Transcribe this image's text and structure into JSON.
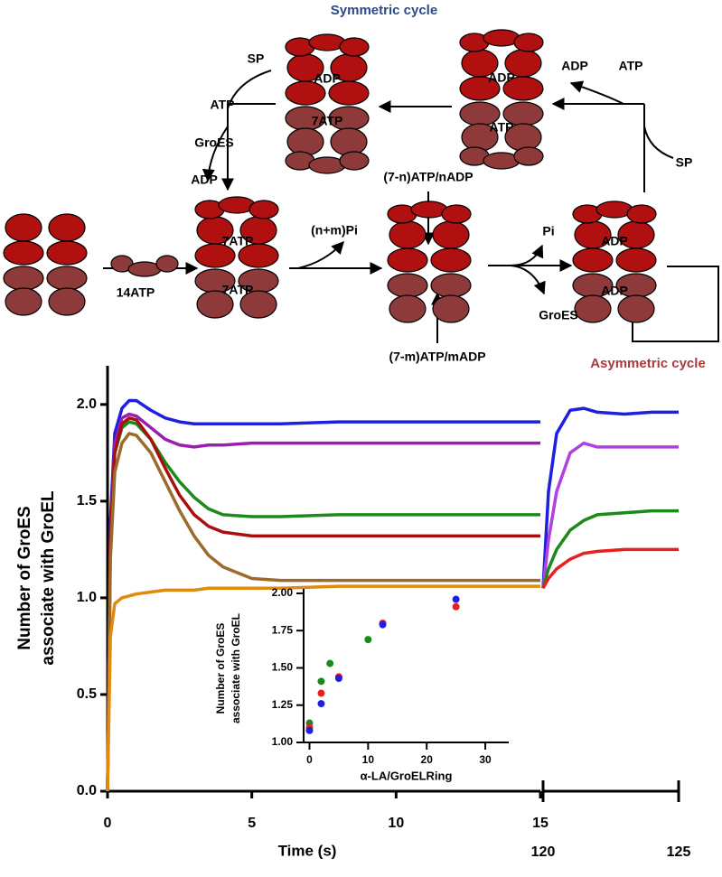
{
  "diagram": {
    "title": "Symmetric cycle",
    "subtitle": "Asymmetric cycle",
    "labels": [
      "SP",
      "ATP",
      "GroES",
      "ADP",
      "ADP",
      "7ATP",
      "ADP",
      "ATP",
      "ADP",
      "ATP",
      "SP",
      "14ATP",
      "7ATP",
      "7ATP",
      "(n+m)Pi",
      "(7-n)ATP/nADP",
      "(7-m)ATP/mADP",
      "Pi",
      "GroES",
      "ADP",
      "ADP"
    ]
  },
  "chart_data": [
    {
      "type": "line",
      "x_label": "Time (s)",
      "y_label": [
        "Number of GroES",
        "associate with GroEL"
      ],
      "x": [
        0,
        0.1,
        0.25,
        0.5,
        0.75,
        1,
        1.5,
        2,
        2.5,
        3,
        3.5,
        4,
        5,
        6,
        8,
        10,
        12,
        15
      ],
      "series": [
        {
          "color": "#1f1fe0",
          "values": [
            0,
            1.4,
            1.85,
            1.98,
            2.02,
            2.02,
            1.97,
            1.93,
            1.91,
            1.9,
            1.9,
            1.9,
            1.9,
            1.9,
            1.91,
            1.91,
            1.91,
            1.91
          ]
        },
        {
          "color": "#9a1fb0",
          "values": [
            0,
            1.35,
            1.8,
            1.93,
            1.95,
            1.94,
            1.88,
            1.82,
            1.79,
            1.78,
            1.79,
            1.79,
            1.8,
            1.8,
            1.8,
            1.8,
            1.8,
            1.8
          ]
        },
        {
          "color": "#1a8a1a",
          "values": [
            0,
            1.3,
            1.75,
            1.88,
            1.91,
            1.9,
            1.82,
            1.7,
            1.6,
            1.52,
            1.46,
            1.43,
            1.42,
            1.42,
            1.43,
            1.43,
            1.43,
            1.43
          ]
        },
        {
          "color": "#a81010",
          "values": [
            0,
            1.3,
            1.75,
            1.9,
            1.93,
            1.92,
            1.82,
            1.67,
            1.53,
            1.43,
            1.37,
            1.34,
            1.32,
            1.32,
            1.32,
            1.32,
            1.32,
            1.32
          ]
        },
        {
          "color": "#9c6a2a",
          "values": [
            0,
            1.2,
            1.65,
            1.8,
            1.85,
            1.84,
            1.75,
            1.6,
            1.45,
            1.32,
            1.22,
            1.16,
            1.1,
            1.09,
            1.09,
            1.09,
            1.09,
            1.09
          ]
        },
        {
          "color": "#e08a10",
          "values": [
            0,
            0.8,
            0.97,
            1.0,
            1.01,
            1.02,
            1.03,
            1.04,
            1.04,
            1.04,
            1.05,
            1.05,
            1.05,
            1.05,
            1.06,
            1.06,
            1.06,
            1.06
          ]
        }
      ],
      "xlim": [
        0,
        15
      ],
      "ylim": [
        0,
        2.2
      ],
      "xticks": [
        0,
        5,
        10,
        15
      ],
      "yticks": [
        {
          "value": 0,
          "label": "0.0"
        },
        0.5,
        {
          "value": 1,
          "label": "1.0"
        },
        1.5,
        {
          "value": 2,
          "label": "2.0"
        }
      ]
    },
    {
      "type": "line",
      "x": [
        120,
        120.2,
        120.5,
        121,
        121.5,
        122,
        123,
        124,
        125
      ],
      "series": [
        {
          "color": "#1f1fe0",
          "values": [
            1.05,
            1.55,
            1.85,
            1.97,
            1.98,
            1.96,
            1.95,
            1.96,
            1.96
          ]
        },
        {
          "color": "#b040e0",
          "values": [
            1.05,
            1.3,
            1.55,
            1.75,
            1.8,
            1.78,
            1.78,
            1.78,
            1.78
          ]
        },
        {
          "color": "#1a8a1a",
          "values": [
            1.05,
            1.15,
            1.25,
            1.35,
            1.4,
            1.43,
            1.44,
            1.45,
            1.45
          ]
        },
        {
          "color": "#e82020",
          "values": [
            1.05,
            1.1,
            1.15,
            1.2,
            1.23,
            1.24,
            1.25,
            1.25,
            1.25
          ]
        }
      ],
      "xlim": [
        120,
        125
      ],
      "ylim": [
        0,
        2.2
      ],
      "xticks": [
        120,
        125
      ]
    },
    {
      "type": "scatter",
      "x_label": "α-LA/GroELRing",
      "y_label": [
        "Number of GroES",
        "associate with GroEL"
      ],
      "series": [
        {
          "color": "#1a8a1a",
          "x": [
            0,
            2,
            3.5,
            10
          ],
          "values": [
            1.13,
            1.41,
            1.53,
            1.69
          ]
        },
        {
          "color": "#e82020",
          "x": [
            0,
            2,
            5,
            12.5,
            25
          ],
          "values": [
            1.1,
            1.33,
            1.44,
            1.8,
            1.91
          ]
        },
        {
          "color": "#1f1fe0",
          "x": [
            0,
            2,
            5,
            12.5,
            25
          ],
          "values": [
            1.08,
            1.26,
            1.43,
            1.79,
            1.96
          ]
        }
      ],
      "xlim": [
        -1,
        34
      ],
      "ylim": [
        1,
        2.03
      ],
      "xticks": [
        0,
        10,
        20,
        30
      ],
      "yticks": [
        {
          "value": 1,
          "label": "1.00"
        },
        1.25,
        {
          "value": 1.5,
          "label": "1.50"
        },
        1.75,
        {
          "value": 2,
          "label": "2.00"
        }
      ]
    }
  ]
}
